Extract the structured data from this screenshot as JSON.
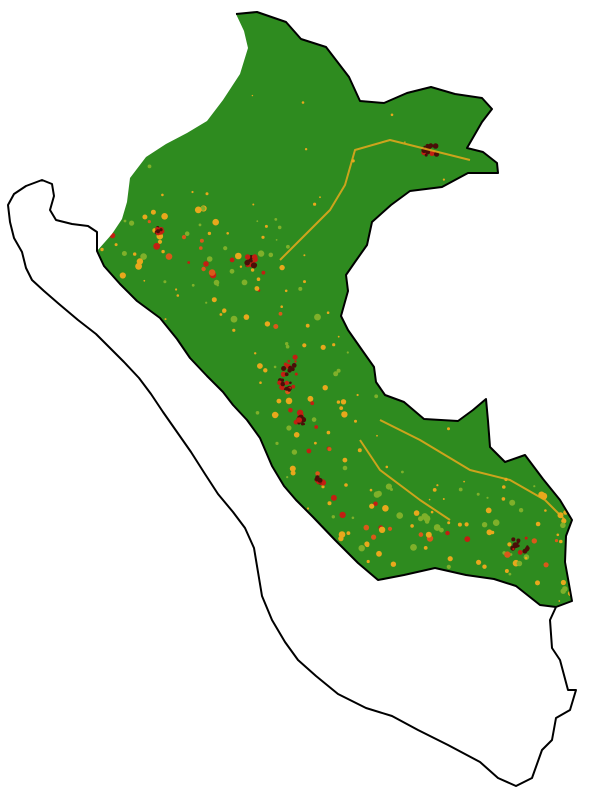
{
  "map": {
    "region": "Peru",
    "legend": [],
    "colors": {
      "background": "#ffffff",
      "outline": "#000000",
      "class_low": "#2e8b1f",
      "class_mid_low": "#7fb02a",
      "class_mid": "#e8a81c",
      "class_high": "#d9591a",
      "class_very_high": "#c21f12",
      "class_extreme": "#4a0e08"
    },
    "layers": [
      {
        "name": "country-outline"
      },
      {
        "name": "raster-suitability"
      }
    ]
  }
}
